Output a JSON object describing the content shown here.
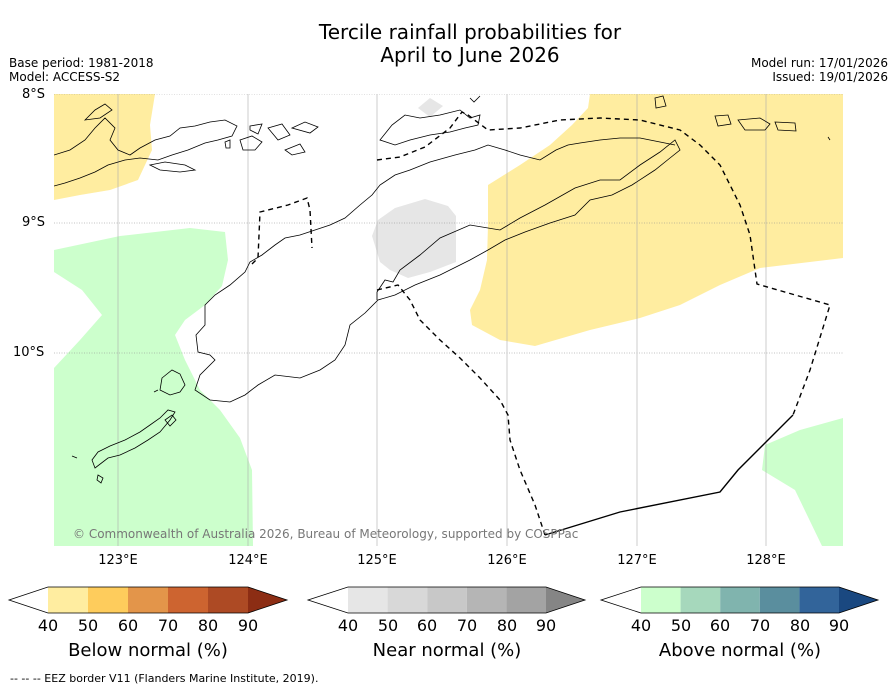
{
  "title_line1": "Tercile rainfall probabilities for",
  "title_line2": "April to June 2026",
  "base_period": "Base period: 1981-2018",
  "model": "Model: ACCESS-S2",
  "model_run": "Model run: 17/01/2026",
  "issued": "Issued: 19/01/2026",
  "lat_labels": [
    "8°S",
    "9°S",
    "10°S"
  ],
  "lon_labels": [
    "123°E",
    "124°E",
    "125°E",
    "126°E",
    "127°E",
    "128°E"
  ],
  "copyright": "© Commonwealth of Australia 2026, Bureau of Meteorology, supported by COSPPac",
  "legends": [
    {
      "label": "Below normal (%)",
      "ticks": [
        "40",
        "50",
        "60",
        "70",
        "80",
        "90"
      ],
      "colors": [
        "#ffffff",
        "#ffeda0",
        "#fecc5c",
        "#e3954a",
        "#cd6430",
        "#ad4a24",
        "#8c2d14"
      ]
    },
    {
      "label": "Near normal (%)",
      "ticks": [
        "40",
        "50",
        "60",
        "70",
        "80",
        "90"
      ],
      "colors": [
        "#ffffff",
        "#e6e6e6",
        "#d8d8d8",
        "#c8c8c8",
        "#b5b5b5",
        "#a3a3a3",
        "#858585"
      ]
    },
    {
      "label": "Above normal (%)",
      "ticks": [
        "40",
        "50",
        "60",
        "70",
        "80",
        "90"
      ],
      "colors": [
        "#ffffff",
        "#ccffcc",
        "#a6d8bc",
        "#80b4ae",
        "#5a8e9e",
        "#32649a",
        "#1a4880"
      ]
    }
  ],
  "footnote": "--  --  -- EEZ border V11 (Flanders Marine Institute, 2019)."
}
